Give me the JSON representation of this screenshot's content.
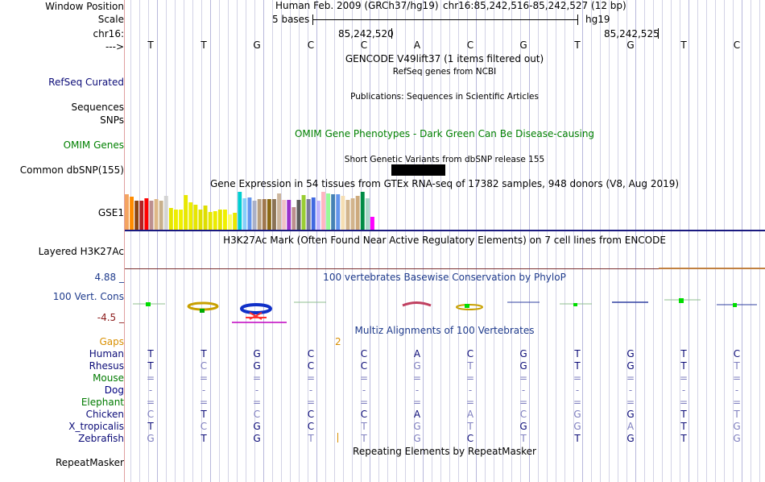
{
  "header": {
    "window_position_label": "Window Position",
    "scale_label": "Scale",
    "chr_label": "chr16:",
    "arrow_label": "--->",
    "assembly_text": "Human Feb. 2009 (GRCh37/hg19)",
    "position_text": "chr16:85,242,516-85,242,527 (12 bp)",
    "scale_text": "5 bases",
    "db_text": "hg19",
    "coord_left": "85,242,520",
    "coord_right": "85,242,525"
  },
  "reference_bases": [
    "T",
    "T",
    "G",
    "C",
    "C",
    "A",
    "C",
    "G",
    "T",
    "G",
    "T",
    "C"
  ],
  "tracks": {
    "gencode_title": "GENCODE V49lift37 (1 items filtered out)",
    "refseq_sub": "RefSeq genes from NCBI",
    "refseq_label": "RefSeq Curated",
    "sequences_label": "Sequences",
    "publications_title": "Publications: Sequences in Scientific Articles",
    "snps_label": "SNPs",
    "omim_title": "OMIM Gene Phenotypes - Dark Green Can Be Disease-causing",
    "omim_label": "OMIM Genes",
    "dbsnp_title": "Short Genetic Variants from dbSNP release 155",
    "dbsnp_label": "Common dbSNP(155)",
    "gtex_title": "Gene Expression in 54 tissues from GTEx RNA-seq of 17382 samples, 948 donors (V8, Aug 2019)",
    "gtex_label": "GSE1",
    "h3k27_title": "H3K27Ac Mark (Often Found Near Active Regulatory Elements) on 7 cell lines from ENCODE",
    "h3k27_label": "Layered H3K27Ac",
    "phylop_max": "4.88 _",
    "phylop_min": "-4.5 _",
    "cons_label": "100 Vert. Cons",
    "phylop_title": "100 vertebrates Basewise Conservation by PhyloP",
    "multiz_title": "Multiz Alignments of 100 Vertebrates",
    "gaps_label": "Gaps",
    "gaps_value": "2",
    "repeat_title": "Repeating Elements by RepeatMasker",
    "repeat_label": "RepeatMasker"
  },
  "gtex_bars": {
    "values": [
      0.91,
      0.86,
      0.74,
      0.76,
      0.82,
      0.75,
      0.8,
      0.74,
      0.87,
      0.57,
      0.52,
      0.52,
      0.89,
      0.7,
      0.65,
      0.53,
      0.62,
      0.46,
      0.47,
      0.52,
      0.52,
      0.4,
      0.43,
      0.98,
      0.82,
      0.84,
      0.74,
      0.8,
      0.8,
      0.79,
      0.8,
      0.94,
      0.78,
      0.77,
      0.59,
      0.77,
      0.89,
      0.8,
      0.84,
      0.76,
      0.97,
      0.93,
      0.92,
      0.91,
      0.88,
      0.77,
      0.82,
      0.88,
      0.97,
      0.81,
      0.34
    ],
    "colors": [
      "#f4a460",
      "#ff8c00",
      "#8b4513",
      "#b22222",
      "#ff0000",
      "#bc8f8f",
      "#deb887",
      "#c8b08c",
      "#d3d3d3",
      "#e6e600",
      "#eeee00",
      "#f0f000",
      "#e8e800",
      "#eeee00",
      "#e6e600",
      "#e0e000",
      "#dede00",
      "#e6e600",
      "#ecec00",
      "#e6e600",
      "#f0f000",
      "#ffff66",
      "#e8e800",
      "#00ced1",
      "#87cefa",
      "#6495ed",
      "#aab0c8",
      "#b8a080",
      "#a0784e",
      "#8b6914",
      "#8b7355",
      "#cdb79e",
      "#f0c0c8",
      "#9932cc",
      "#bc8f8f",
      "#5c5c5c",
      "#9acd32",
      "#7a7a9a",
      "#4169e1",
      "#c0b4ff",
      "#ffb6c1",
      "#98fb98",
      "#4682b4",
      "#6495ed",
      "#f5deb3",
      "#d2b48c",
      "#d2b48c",
      "#cdaa7d",
      "#008b45",
      "#a8d8c8",
      "#ff00ff"
    ]
  },
  "alignment": {
    "species": [
      "Human",
      "Rhesus",
      "Mouse",
      "Dog",
      "Elephant",
      "Chicken",
      "X_tropicalis",
      "Zebrafish"
    ],
    "rows": [
      [
        "T",
        "T",
        "G",
        "C",
        "C",
        "A",
        "C",
        "G",
        "T",
        "G",
        "T",
        "C"
      ],
      [
        "T",
        "C",
        "G",
        "C",
        "C",
        "G",
        "T",
        "G",
        "T",
        "G",
        "T",
        "T"
      ],
      [
        "=",
        "=",
        "=",
        "=",
        "=",
        "=",
        "=",
        "=",
        "=",
        "=",
        "=",
        "="
      ],
      [
        "-",
        "-",
        "-",
        "-",
        "-",
        "-",
        "-",
        "-",
        "-",
        "-",
        "-",
        "-"
      ],
      [
        "=",
        "=",
        "=",
        "=",
        "=",
        "=",
        "=",
        "=",
        "=",
        "=",
        "=",
        "="
      ],
      [
        "C",
        "T",
        "C",
        "C",
        "C",
        "A",
        "A",
        "C",
        "G",
        "G",
        "T",
        "T"
      ],
      [
        "T",
        "C",
        "G",
        "C",
        "T",
        "G",
        "T",
        "G",
        "G",
        "A",
        "T",
        "G"
      ],
      [
        "G",
        "T",
        "G",
        "T",
        "T",
        "G",
        "C",
        "T",
        "T",
        "G",
        "T",
        "G"
      ]
    ],
    "match": [
      [
        1,
        1,
        1,
        1,
        1,
        1,
        1,
        1,
        1,
        1,
        1,
        1
      ],
      [
        1,
        0,
        1,
        1,
        1,
        0,
        0,
        1,
        1,
        1,
        1,
        0
      ],
      [
        0,
        0,
        0,
        0,
        0,
        0,
        0,
        0,
        0,
        0,
        0,
        0
      ],
      [
        0,
        0,
        0,
        0,
        0,
        0,
        0,
        0,
        0,
        0,
        0,
        0
      ],
      [
        0,
        0,
        0,
        0,
        0,
        0,
        0,
        0,
        0,
        0,
        0,
        0
      ],
      [
        0,
        1,
        0,
        1,
        1,
        1,
        0,
        0,
        0,
        1,
        1,
        0
      ],
      [
        1,
        0,
        1,
        1,
        0,
        0,
        0,
        1,
        0,
        0,
        1,
        0
      ],
      [
        0,
        1,
        1,
        0,
        0,
        0,
        1,
        0,
        1,
        1,
        1,
        0
      ]
    ]
  },
  "colors": {
    "label_blue": "#0c0c78",
    "omim_green": "#008000",
    "match_color": "#0c0c78",
    "mismatch_color": "#7f7fbf",
    "gap_color": "#7f7fbf"
  }
}
